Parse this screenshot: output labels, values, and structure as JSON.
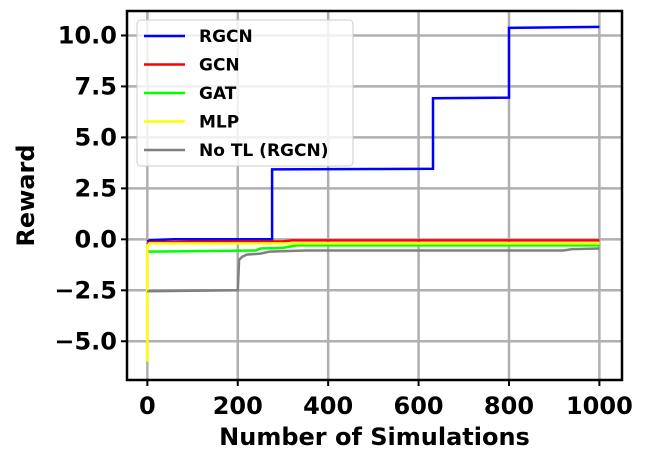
{
  "chart_data": {
    "type": "line",
    "title": "",
    "xlabel": "Number of Simulations",
    "ylabel": "Reward",
    "xlim": [
      -45,
      1050
    ],
    "ylim": [
      -6.9,
      11.2
    ],
    "xticks": [
      0,
      200,
      400,
      600,
      800,
      1000
    ],
    "yticks": [
      10.0,
      7.5,
      5.0,
      2.5,
      0.0,
      -2.5,
      -5.0
    ],
    "xtick_labels": [
      "0",
      "200",
      "400",
      "600",
      "800",
      "1000"
    ],
    "ytick_labels": [
      "10.0",
      "7.5",
      "5.0",
      "2.5",
      "0.0",
      "−2.5",
      "−5.0"
    ],
    "grid": true,
    "legend_position": "top-left",
    "series": [
      {
        "name": "RGCN",
        "color": "#0000ff",
        "x": [
          0,
          5,
          60,
          276,
          276,
          500,
          632,
          632,
          800,
          800,
          1000
        ],
        "y": [
          -0.1,
          -0.05,
          0.0,
          0.0,
          3.43,
          3.45,
          3.46,
          6.92,
          6.95,
          10.37,
          10.42
        ]
      },
      {
        "name": "GCN",
        "color": "#ff0000",
        "x": [
          0,
          5,
          100,
          300,
          320,
          1000
        ],
        "y": [
          -0.25,
          -0.15,
          -0.12,
          -0.1,
          -0.05,
          -0.05
        ]
      },
      {
        "name": "GAT",
        "color": "#00ff00",
        "x": [
          0,
          5,
          240,
          250,
          300,
          330,
          1000
        ],
        "y": [
          -0.55,
          -0.6,
          -0.55,
          -0.45,
          -0.42,
          -0.3,
          -0.3
        ]
      },
      {
        "name": "MLP",
        "color": "#ffff00",
        "x": [
          0,
          0,
          3,
          5,
          300,
          1000
        ],
        "y": [
          -6.0,
          -0.3,
          -0.25,
          -0.2,
          -0.2,
          -0.2
        ]
      },
      {
        "name": "No TL (RGCN)",
        "color": "#808080",
        "x": [
          0,
          200,
          203,
          210,
          220,
          250,
          270,
          350,
          500,
          920,
          940,
          1000
        ],
        "y": [
          -2.55,
          -2.5,
          -1.0,
          -0.85,
          -0.75,
          -0.7,
          -0.6,
          -0.55,
          -0.55,
          -0.55,
          -0.48,
          -0.45
        ]
      }
    ]
  }
}
